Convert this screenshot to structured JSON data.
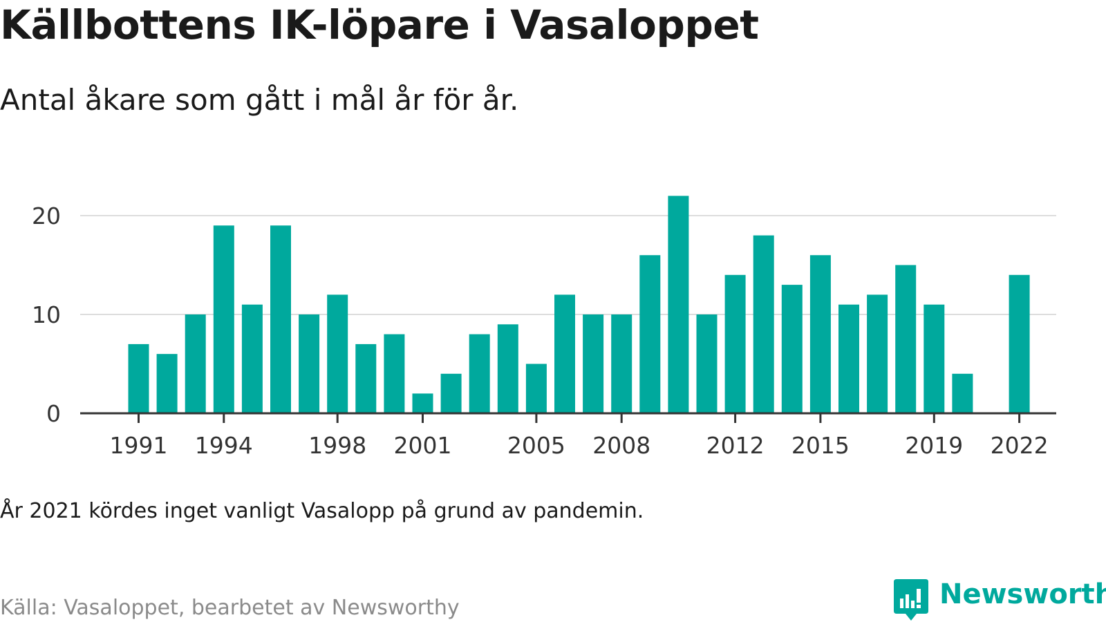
{
  "header": {
    "title": "Källbottens IK-löpare i Vasaloppet",
    "subtitle": "Antal åkare som gått i mål år för år."
  },
  "footer": {
    "note": "År 2021 kördes inget vanligt Vasalopp på grund av pandemin.",
    "source": "Källa: Vasaloppet, bearbetet av Newsworthy",
    "logo_text": "Newsworthy"
  },
  "colors": {
    "bar": "#00a99d",
    "grid": "#dddddd",
    "axis": "#333333",
    "logo": "#00a99d"
  },
  "chart_data": {
    "type": "bar",
    "categories": [
      1991,
      1992,
      1993,
      1994,
      1995,
      1996,
      1997,
      1998,
      1999,
      2000,
      2001,
      2002,
      2003,
      2004,
      2005,
      2006,
      2007,
      2008,
      2009,
      2010,
      2011,
      2012,
      2013,
      2014,
      2015,
      2016,
      2017,
      2018,
      2019,
      2020,
      2021,
      2022
    ],
    "values": [
      7,
      6,
      10,
      19,
      11,
      19,
      10,
      12,
      7,
      8,
      2,
      4,
      8,
      9,
      5,
      12,
      10,
      10,
      16,
      22,
      10,
      14,
      18,
      13,
      16,
      11,
      12,
      15,
      11,
      4,
      null,
      14
    ],
    "x_tick_labels": [
      "1991",
      "1994",
      "1998",
      "2001",
      "2005",
      "2008",
      "2012",
      "2015",
      "2019",
      "2022"
    ],
    "y_ticks": [
      0,
      10,
      20
    ],
    "ylim": [
      0,
      22
    ],
    "grid": true,
    "legend": "none"
  }
}
